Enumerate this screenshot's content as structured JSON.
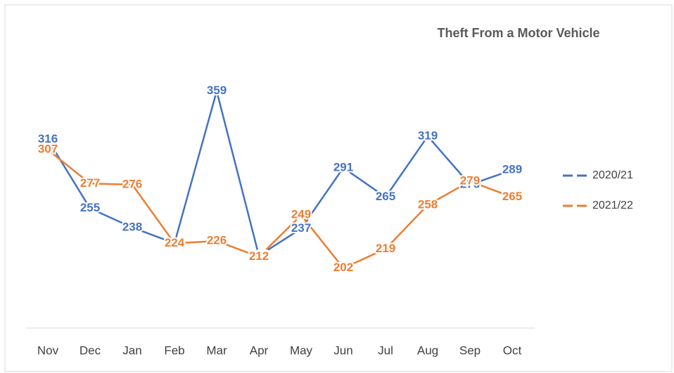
{
  "chart_data": {
    "type": "line",
    "title": "Theft From a Motor Vehicle",
    "categories": [
      "Nov",
      "Dec",
      "Jan",
      "Feb",
      "Mar",
      "Apr",
      "May",
      "Jun",
      "Jul",
      "Aug",
      "Sep",
      "Oct"
    ],
    "series": [
      {
        "name": "2020/21",
        "color": "#4472c4",
        "values": [
          316,
          255,
          238,
          224,
          359,
          213,
          237,
          291,
          265,
          319,
          276,
          289
        ]
      },
      {
        "name": "2021/22",
        "color": "#ed7d31",
        "values": [
          307,
          277,
          276,
          224,
          226,
          212,
          249,
          202,
          219,
          258,
          279,
          265
        ]
      }
    ],
    "ylim": [
      150,
      400
    ]
  }
}
